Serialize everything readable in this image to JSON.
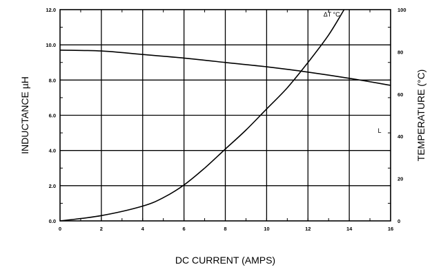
{
  "chart_data": {
    "type": "line",
    "xlabel": "DC CURRENT (AMPS)",
    "ylabel": "INDUCTANCE µH",
    "y2label": "TEMPERATURE (°C)",
    "xlim": [
      0,
      16
    ],
    "ylim": [
      0,
      12
    ],
    "y2lim": [
      0,
      100
    ],
    "grid": true,
    "x_ticks": [
      "0",
      "2",
      "4",
      "6",
      "8",
      "10",
      "12",
      "14",
      "16"
    ],
    "y_ticks": [
      "0.0",
      "2.0",
      "4.0",
      "6.0",
      "8.0",
      "10.0",
      "12.0"
    ],
    "y2_ticks": [
      "0",
      "20",
      "40",
      "60",
      "80",
      "100"
    ],
    "series": [
      {
        "name": "L",
        "axis": "left",
        "x": [
          0,
          2,
          4,
          6,
          8,
          10,
          12,
          14,
          16
        ],
        "y": [
          9.7,
          9.65,
          9.45,
          9.25,
          9.0,
          8.75,
          8.45,
          8.1,
          7.7
        ]
      },
      {
        "name": "ΔT °C",
        "axis": "right",
        "x": [
          0,
          2,
          4,
          5,
          6,
          7,
          8,
          9,
          10,
          11,
          12,
          13,
          13.75
        ],
        "y": [
          0,
          2.5,
          7,
          11,
          17,
          25,
          34,
          43,
          53,
          63,
          75,
          88,
          100
        ]
      }
    ]
  }
}
